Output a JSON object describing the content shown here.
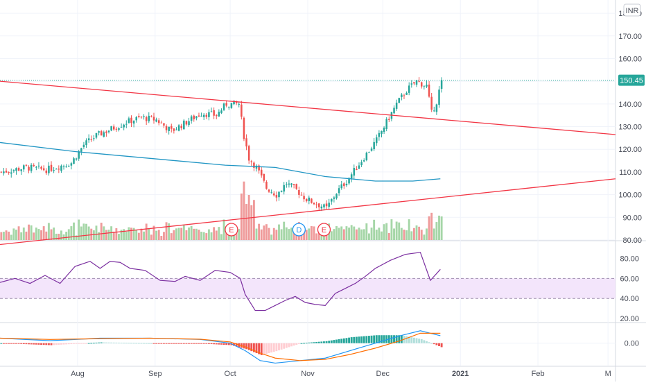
{
  "currency_label": "INR",
  "colors": {
    "up": "#26a69a",
    "down": "#ef5350",
    "vol_up": "#a5d6a7",
    "vol_down": "#ef9a9a",
    "trend": "#f23645",
    "ma": "#2196c4",
    "rsi": "#7b2fa0",
    "rsi_band": "#f3e5fb",
    "macd": "#2196f3",
    "signal": "#ff6d00",
    "price_tag": "#26a69a",
    "grid": "#f0f3fa",
    "axis_text": "#4a4e59"
  },
  "chart_data": [
    {
      "type": "candlestick",
      "panel": "price",
      "y_ticks": [
        "180.00",
        "170.00",
        "160.00",
        "150.00",
        "140.00",
        "130.00",
        "120.00",
        "110.00",
        "100.00",
        "90.00",
        "80.00"
      ],
      "ylim": [
        80,
        184
      ],
      "x_ticks": [
        {
          "label": "Aug",
          "day": 31
        },
        {
          "label": "Sep",
          "day": 62
        },
        {
          "label": "Oct",
          "day": 92
        },
        {
          "label": "Nov",
          "day": 123
        },
        {
          "label": "Dec",
          "day": 153
        },
        {
          "label": "2021",
          "day": 184
        },
        {
          "label": "Feb",
          "day": 215
        },
        {
          "label": "M",
          "day": 243
        }
      ],
      "x_range_days": [
        0,
        246
      ],
      "last_price": "150.45",
      "price_waypoints": [
        [
          0,
          110
        ],
        [
          10,
          112
        ],
        [
          18,
          111
        ],
        [
          28,
          114
        ],
        [
          33,
          122
        ],
        [
          38,
          126
        ],
        [
          44,
          129
        ],
        [
          50,
          132
        ],
        [
          56,
          134
        ],
        [
          62,
          133
        ],
        [
          68,
          128
        ],
        [
          74,
          132
        ],
        [
          80,
          136
        ],
        [
          86,
          135
        ],
        [
          90,
          140
        ],
        [
          95,
          140
        ],
        [
          97,
          126
        ],
        [
          99,
          116
        ],
        [
          102,
          112
        ],
        [
          106,
          103
        ],
        [
          110,
          100
        ],
        [
          114,
          105
        ],
        [
          118,
          102
        ],
        [
          122,
          98
        ],
        [
          126,
          96
        ],
        [
          130,
          94
        ],
        [
          134,
          101
        ],
        [
          138,
          106
        ],
        [
          142,
          112
        ],
        [
          146,
          118
        ],
        [
          150,
          124
        ],
        [
          154,
          132
        ],
        [
          158,
          140
        ],
        [
          162,
          146
        ],
        [
          166,
          150
        ],
        [
          170,
          148
        ],
        [
          172,
          136
        ],
        [
          174,
          141
        ],
        [
          176,
          150.45
        ]
      ],
      "earnings_markers": [
        {
          "label": "E",
          "day": 92
        },
        {
          "label": "D",
          "day": 119
        },
        {
          "label": "E",
          "day": 129
        }
      ],
      "moving_average": [
        [
          0,
          123
        ],
        [
          30,
          119
        ],
        [
          60,
          116
        ],
        [
          90,
          113
        ],
        [
          110,
          112
        ],
        [
          130,
          108
        ],
        [
          150,
          106
        ],
        [
          165,
          106
        ],
        [
          176,
          107
        ]
      ],
      "trendlines": [
        {
          "from": [
            0,
            150
          ],
          "to": [
            246,
            126.5
          ]
        },
        {
          "from": [
            0,
            78
          ],
          "to": [
            246,
            107
          ]
        }
      ]
    },
    {
      "type": "line",
      "panel": "rsi",
      "y_ticks": [
        "80.00",
        "60.00",
        "40.00",
        "20.00"
      ],
      "ylim": [
        18,
        90
      ],
      "band": [
        40,
        60
      ],
      "values": [
        [
          0,
          56
        ],
        [
          6,
          60
        ],
        [
          12,
          55
        ],
        [
          18,
          63
        ],
        [
          24,
          55
        ],
        [
          30,
          72
        ],
        [
          36,
          77
        ],
        [
          40,
          70
        ],
        [
          44,
          77
        ],
        [
          48,
          76
        ],
        [
          52,
          70
        ],
        [
          58,
          68
        ],
        [
          64,
          58
        ],
        [
          70,
          57
        ],
        [
          74,
          62
        ],
        [
          80,
          58
        ],
        [
          86,
          68
        ],
        [
          92,
          66
        ],
        [
          96,
          60
        ],
        [
          98,
          44
        ],
        [
          102,
          28
        ],
        [
          106,
          28
        ],
        [
          110,
          33
        ],
        [
          114,
          38
        ],
        [
          118,
          42
        ],
        [
          122,
          36
        ],
        [
          126,
          34
        ],
        [
          130,
          33
        ],
        [
          134,
          45
        ],
        [
          138,
          50
        ],
        [
          142,
          55
        ],
        [
          146,
          62
        ],
        [
          150,
          70
        ],
        [
          156,
          78
        ],
        [
          162,
          84
        ],
        [
          168,
          86
        ],
        [
          172,
          58
        ],
        [
          176,
          69
        ]
      ]
    },
    {
      "type": "macd",
      "panel": "macd",
      "y_ticks": [
        "0.00"
      ],
      "ylim": [
        -9,
        8
      ],
      "macd": [
        [
          0,
          2
        ],
        [
          20,
          1
        ],
        [
          40,
          2
        ],
        [
          60,
          2
        ],
        [
          80,
          1.5
        ],
        [
          92,
          0
        ],
        [
          98,
          -3
        ],
        [
          104,
          -7
        ],
        [
          110,
          -8
        ],
        [
          120,
          -7
        ],
        [
          130,
          -6
        ],
        [
          140,
          -3
        ],
        [
          150,
          0
        ],
        [
          160,
          3
        ],
        [
          168,
          5
        ],
        [
          176,
          3
        ]
      ],
      "signal": [
        [
          0,
          2
        ],
        [
          20,
          1.5
        ],
        [
          40,
          1.8
        ],
        [
          60,
          2
        ],
        [
          80,
          1.6
        ],
        [
          92,
          0.5
        ],
        [
          98,
          -1.5
        ],
        [
          104,
          -4
        ],
        [
          110,
          -6
        ],
        [
          120,
          -7
        ],
        [
          130,
          -6.5
        ],
        [
          140,
          -4.5
        ],
        [
          150,
          -2
        ],
        [
          160,
          1
        ],
        [
          168,
          4
        ],
        [
          176,
          4
        ]
      ]
    }
  ]
}
